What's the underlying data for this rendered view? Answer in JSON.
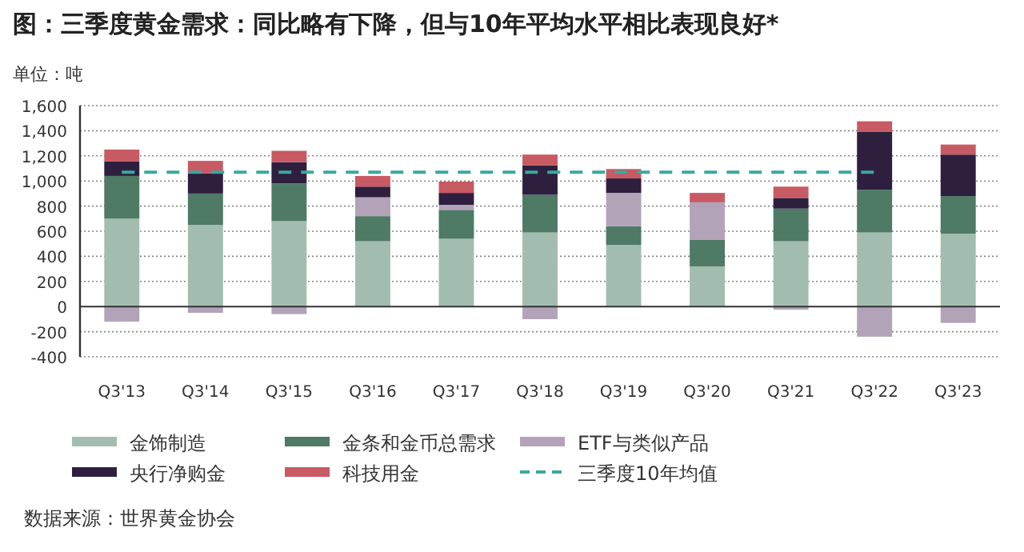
{
  "chart_data": {
    "type": "bar",
    "stacked": true,
    "title": "图：三季度黄金需求：同比略有下降，但与10年平均水平相比表现良好*",
    "ylabel": "单位：吨",
    "categories": [
      "Q3'13",
      "Q3'14",
      "Q3'15",
      "Q3'16",
      "Q3'17",
      "Q3'18",
      "Q3'19",
      "Q3'20",
      "Q3'21",
      "Q3'22",
      "Q3'23"
    ],
    "series": [
      {
        "name": "金饰制造",
        "color": "#a3bcb0",
        "values": [
          700,
          650,
          680,
          520,
          540,
          590,
          490,
          320,
          520,
          590,
          580
        ]
      },
      {
        "name": "金条和金币总需求",
        "color": "#4e7a66",
        "values": [
          340,
          250,
          300,
          200,
          230,
          300,
          150,
          210,
          260,
          340,
          300
        ]
      },
      {
        "name": "ETF与类似产品",
        "color": "#b3a3b8",
        "values": [
          -120,
          -50,
          -60,
          150,
          40,
          -100,
          265,
          300,
          -25,
          -240,
          -130
        ]
      },
      {
        "name": "央行净购金",
        "color": "#2e1f3f",
        "values": [
          115,
          160,
          170,
          85,
          95,
          235,
          115,
          0,
          85,
          460,
          330
        ]
      },
      {
        "name": "科技用金",
        "color": "#c85a63",
        "values": [
          95,
          100,
          90,
          85,
          90,
          85,
          75,
          75,
          90,
          85,
          80
        ]
      },
      {
        "name": "三季度10年均值",
        "type": "line",
        "line_style": "dashed",
        "color": "#3aa8a0",
        "values": [
          1070,
          1070,
          1070,
          1070,
          1070,
          1070,
          1070,
          1070,
          1070,
          1070,
          null
        ]
      }
    ],
    "ylim": [
      -400,
      1600
    ],
    "yticks": [
      -400,
      -200,
      0,
      200,
      400,
      600,
      800,
      {
        "value": 1000,
        "label": "1,000"
      },
      {
        "value": 1200,
        "label": "1,200"
      },
      {
        "value": 1400,
        "label": "1,400"
      },
      {
        "value": 1600,
        "label": "1,600"
      }
    ],
    "grid": "y",
    "legend": "bottom",
    "annotations": [
      "数据来源：世界黄金协会"
    ]
  }
}
